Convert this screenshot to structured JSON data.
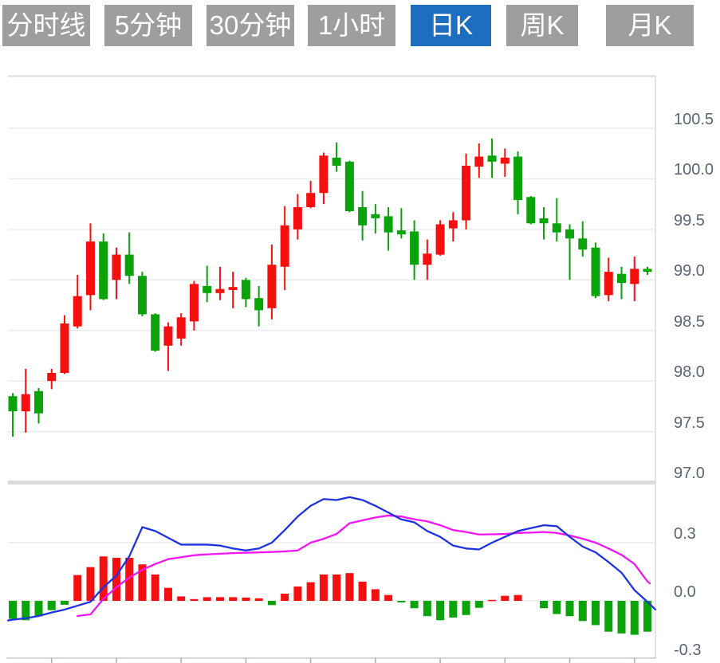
{
  "tabs": {
    "items": [
      {
        "id": "timeline",
        "label": "分时线",
        "selected": false
      },
      {
        "id": "5min",
        "label": "5分钟",
        "selected": false
      },
      {
        "id": "30min",
        "label": "30分钟",
        "selected": false
      },
      {
        "id": "1hour",
        "label": "1小时",
        "selected": false
      },
      {
        "id": "daily-k",
        "label": "日K",
        "selected": true
      },
      {
        "id": "weekly-k",
        "label": "周K",
        "selected": false
      },
      {
        "id": "monthly-k",
        "label": "月K",
        "selected": false
      }
    ]
  },
  "price_axis": {
    "labels": [
      "100.5",
      "100.0",
      "99.5",
      "99.0",
      "98.5",
      "98.0",
      "97.5",
      "97.0"
    ]
  },
  "macd_axis": {
    "labels": [
      "0.3",
      "0.0",
      "-0.3"
    ]
  },
  "colors": {
    "up": "#f50f0f",
    "down": "#0aa30a",
    "dif_line": "#1e32e0",
    "dea_line": "#f414f4",
    "tab_bg": "#9e9e9e",
    "tab_selected_bg": "#1d6ec1",
    "tab_text": "#ffffff",
    "grid": "#e8e8e8",
    "panel_border": "#dcdcdc",
    "axis_line": "#c9ccd4",
    "tick": "#a9b0bd",
    "axis_text": "#5b6573"
  },
  "chart_data": {
    "type": "candlestick_with_macd",
    "title": "",
    "legend": [],
    "grid": true,
    "price_axis": {
      "min": 97.0,
      "max": 100.75,
      "tick_values": [
        100.5,
        100.0,
        99.5,
        99.0,
        98.5,
        98.0,
        97.5,
        97.0
      ],
      "position": "right"
    },
    "macd_axis": {
      "tick_values": [
        0.3,
        0.0,
        -0.3
      ],
      "position": "right"
    },
    "candles": [
      {
        "o": 97.85,
        "h": 97.88,
        "l": 97.45,
        "c": 97.7
      },
      {
        "o": 97.7,
        "h": 98.12,
        "l": 97.49,
        "c": 97.87
      },
      {
        "o": 97.9,
        "h": 97.93,
        "l": 97.58,
        "c": 97.68
      },
      {
        "o": 98.0,
        "h": 98.12,
        "l": 97.92,
        "c": 98.08
      },
      {
        "o": 98.08,
        "h": 98.65,
        "l": 98.07,
        "c": 98.57
      },
      {
        "o": 98.54,
        "h": 99.05,
        "l": 98.52,
        "c": 98.84
      },
      {
        "o": 98.85,
        "h": 99.56,
        "l": 98.7,
        "c": 99.38
      },
      {
        "o": 99.38,
        "h": 99.46,
        "l": 98.8,
        "c": 98.81
      },
      {
        "o": 99.0,
        "h": 99.32,
        "l": 98.81,
        "c": 99.25
      },
      {
        "o": 99.25,
        "h": 99.47,
        "l": 98.96,
        "c": 99.04
      },
      {
        "o": 99.04,
        "h": 99.08,
        "l": 98.64,
        "c": 98.66
      },
      {
        "o": 98.66,
        "h": 98.67,
        "l": 98.29,
        "c": 98.3
      },
      {
        "o": 98.35,
        "h": 98.58,
        "l": 98.1,
        "c": 98.54
      },
      {
        "o": 98.42,
        "h": 98.67,
        "l": 98.35,
        "c": 98.63
      },
      {
        "o": 98.59,
        "h": 98.99,
        "l": 98.5,
        "c": 98.96
      },
      {
        "o": 98.94,
        "h": 99.14,
        "l": 98.78,
        "c": 98.87
      },
      {
        "o": 98.87,
        "h": 99.13,
        "l": 98.8,
        "c": 98.91
      },
      {
        "o": 98.9,
        "h": 99.08,
        "l": 98.72,
        "c": 98.93
      },
      {
        "o": 99.0,
        "h": 99.02,
        "l": 98.73,
        "c": 98.81
      },
      {
        "o": 98.82,
        "h": 98.94,
        "l": 98.54,
        "c": 98.7
      },
      {
        "o": 98.72,
        "h": 99.35,
        "l": 98.61,
        "c": 99.15
      },
      {
        "o": 99.13,
        "h": 99.73,
        "l": 98.9,
        "c": 99.54
      },
      {
        "o": 99.5,
        "h": 99.85,
        "l": 99.4,
        "c": 99.72
      },
      {
        "o": 99.72,
        "h": 99.98,
        "l": 99.71,
        "c": 99.86
      },
      {
        "o": 99.86,
        "h": 100.26,
        "l": 99.75,
        "c": 100.23
      },
      {
        "o": 100.21,
        "h": 100.36,
        "l": 100.07,
        "c": 100.13
      },
      {
        "o": 100.17,
        "h": 100.18,
        "l": 99.67,
        "c": 99.68
      },
      {
        "o": 99.72,
        "h": 99.88,
        "l": 99.39,
        "c": 99.54
      },
      {
        "o": 99.65,
        "h": 99.75,
        "l": 99.46,
        "c": 99.61
      },
      {
        "o": 99.63,
        "h": 99.72,
        "l": 99.29,
        "c": 99.47
      },
      {
        "o": 99.49,
        "h": 99.71,
        "l": 99.41,
        "c": 99.45
      },
      {
        "o": 99.48,
        "h": 99.59,
        "l": 99.0,
        "c": 99.15
      },
      {
        "o": 99.15,
        "h": 99.4,
        "l": 99.0,
        "c": 99.26
      },
      {
        "o": 99.25,
        "h": 99.59,
        "l": 99.24,
        "c": 99.55
      },
      {
        "o": 99.51,
        "h": 99.67,
        "l": 99.38,
        "c": 99.59
      },
      {
        "o": 99.59,
        "h": 100.25,
        "l": 99.5,
        "c": 100.13
      },
      {
        "o": 100.12,
        "h": 100.35,
        "l": 100.01,
        "c": 100.22
      },
      {
        "o": 100.23,
        "h": 100.4,
        "l": 100.01,
        "c": 100.17
      },
      {
        "o": 100.15,
        "h": 100.3,
        "l": 100.02,
        "c": 100.21
      },
      {
        "o": 100.22,
        "h": 100.27,
        "l": 99.65,
        "c": 99.79
      },
      {
        "o": 99.82,
        "h": 99.83,
        "l": 99.55,
        "c": 99.56
      },
      {
        "o": 99.61,
        "h": 99.72,
        "l": 99.4,
        "c": 99.56
      },
      {
        "o": 99.56,
        "h": 99.81,
        "l": 99.38,
        "c": 99.47
      },
      {
        "o": 99.5,
        "h": 99.55,
        "l": 99.0,
        "c": 99.41
      },
      {
        "o": 99.41,
        "h": 99.58,
        "l": 99.23,
        "c": 99.3
      },
      {
        "o": 99.32,
        "h": 99.37,
        "l": 98.82,
        "c": 98.84
      },
      {
        "o": 98.85,
        "h": 99.22,
        "l": 98.79,
        "c": 99.08
      },
      {
        "o": 99.06,
        "h": 99.13,
        "l": 98.81,
        "c": 98.97
      },
      {
        "o": 98.96,
        "h": 99.23,
        "l": 98.79,
        "c": 99.11
      },
      {
        "o": 99.11,
        "h": 99.13,
        "l": 99.05,
        "c": 99.08
      }
    ],
    "macd": {
      "histogram": [
        -0.093,
        -0.1,
        -0.079,
        -0.048,
        -0.02,
        0.133,
        0.174,
        0.229,
        0.222,
        0.222,
        0.188,
        0.136,
        0.067,
        0.023,
        0.009,
        0.019,
        0.019,
        0.019,
        0.017,
        0.013,
        -0.022,
        0.037,
        0.074,
        0.096,
        0.136,
        0.136,
        0.143,
        0.099,
        0.06,
        0.03,
        -0.008,
        -0.038,
        -0.079,
        -0.1,
        -0.086,
        -0.073,
        -0.036,
        0.005,
        0.026,
        0.03,
        0,
        -0.038,
        -0.068,
        -0.079,
        -0.104,
        -0.125,
        -0.159,
        -0.168,
        -0.175,
        -0.159
      ],
      "dif": [
        -0.097,
        -0.09,
        -0.078,
        -0.06,
        -0.045,
        -0.025,
        -0.005,
        0.07,
        0.13,
        0.23,
        0.38,
        0.36,
        0.325,
        0.29,
        0.29,
        0.29,
        0.285,
        0.27,
        0.26,
        0.27,
        0.3,
        0.365,
        0.435,
        0.49,
        0.525,
        0.52,
        0.535,
        0.52,
        0.49,
        0.455,
        0.42,
        0.405,
        0.36,
        0.33,
        0.285,
        0.27,
        0.265,
        0.3,
        0.33,
        0.36,
        0.375,
        0.39,
        0.385,
        0.33,
        0.28,
        0.25,
        0.2,
        0.145,
        0.055,
        -0.005
      ],
      "dea": [
        null,
        null,
        null,
        null,
        null,
        -0.078,
        -0.07,
        0.01,
        0.07,
        0.12,
        0.16,
        0.19,
        0.215,
        0.225,
        0.235,
        0.24,
        0.243,
        0.246,
        0.248,
        0.25,
        0.252,
        0.255,
        0.26,
        0.3,
        0.32,
        0.345,
        0.4,
        0.415,
        0.43,
        0.44,
        0.435,
        0.42,
        0.41,
        0.39,
        0.365,
        0.355,
        0.342,
        0.343,
        0.345,
        0.35,
        0.352,
        0.355,
        0.35,
        0.337,
        0.32,
        0.3,
        0.27,
        0.237,
        0.19,
        0.1
      ],
      "dif_edge_start": -0.101,
      "dif_edge_end": -0.045,
      "dea_edge_end": 0.09
    },
    "x_ticks_candle_indices": [
      3,
      8,
      13,
      18,
      23,
      28,
      33,
      38,
      43,
      48
    ]
  }
}
